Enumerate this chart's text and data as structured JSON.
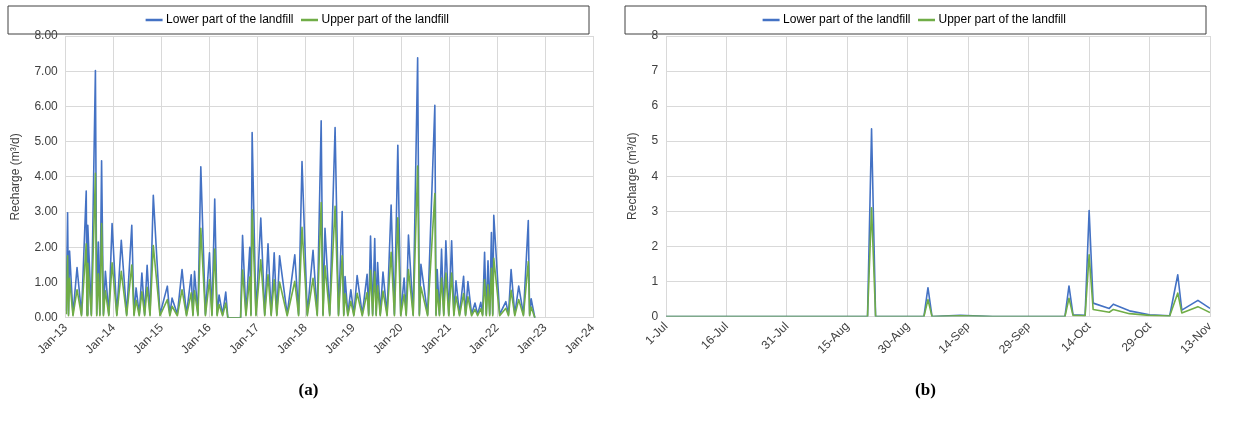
{
  "chart_data": [
    {
      "type": "line",
      "ylabel": "Recharge (m³/d)",
      "legend": "top",
      "grid": true,
      "marker": "none",
      "line_style": "solid",
      "annotations": [
        "(a)"
      ],
      "xlim": [
        "2013-01",
        "2024-01"
      ],
      "xticks": [
        {
          "value": "2013-01",
          "label": "Jan-13"
        },
        {
          "value": "2014-01",
          "label": "Jan-14"
        },
        {
          "value": "2015-01",
          "label": "Jan-15"
        },
        {
          "value": "2016-01",
          "label": "Jan-16"
        },
        {
          "value": "2017-01",
          "label": "Jan-17"
        },
        {
          "value": "2018-01",
          "label": "Jan-18"
        },
        {
          "value": "2019-01",
          "label": "Jan-19"
        },
        {
          "value": "2020-01",
          "label": "Jan-20"
        },
        {
          "value": "2021-01",
          "label": "Jan-21"
        },
        {
          "value": "2022-01",
          "label": "Jan-22"
        },
        {
          "value": "2023-01",
          "label": "Jan-23"
        },
        {
          "value": "2024-01",
          "label": "Jan-24"
        }
      ],
      "ylim": [
        0,
        8
      ],
      "yticks": [
        {
          "value": 0,
          "label": "0.00"
        },
        {
          "value": 1,
          "label": "1.00"
        },
        {
          "value": 2,
          "label": "2.00"
        },
        {
          "value": 3,
          "label": "3.00"
        },
        {
          "value": 4,
          "label": "4.00"
        },
        {
          "value": 5,
          "label": "5.00"
        },
        {
          "value": 6,
          "label": "6.00"
        },
        {
          "value": 7,
          "label": "7.00"
        },
        {
          "value": 8,
          "label": "8.00"
        }
      ],
      "x": [
        "2013-01-05",
        "2013-01-15",
        "2013-01-22",
        "2013-01-30",
        "2013-02-25",
        "2013-03-28",
        "2013-05-01",
        "2013-06-06",
        "2013-06-12",
        "2013-06-18",
        "2013-07-15",
        "2013-08-15",
        "2013-08-25",
        "2013-09-06",
        "2013-09-18",
        "2013-10-01",
        "2013-10-15",
        "2013-10-30",
        "2013-11-25",
        "2013-12-20",
        "2014-01-25",
        "2014-02-28",
        "2014-04-10",
        "2014-05-19",
        "2014-06-05",
        "2014-06-21",
        "2014-07-15",
        "2014-08-04",
        "2014-08-25",
        "2014-09-13",
        "2014-10-05",
        "2014-10-30",
        "2014-12-20",
        "2015-02-14",
        "2015-03-05",
        "2015-03-22",
        "2015-05-01",
        "2015-06-06",
        "2015-07-10",
        "2015-08-15",
        "2015-08-28",
        "2015-09-09",
        "2015-10-05",
        "2015-10-27",
        "2015-12-01",
        "2016-01-01",
        "2016-01-20",
        "2016-02-10",
        "2016-02-28",
        "2016-03-14",
        "2016-04-10",
        "2016-05-04",
        "2016-05-20",
        "2016-08-25",
        "2016-09-09",
        "2016-10-05",
        "2016-11-03",
        "2016-11-12",
        "2016-11-21",
        "2016-12-20",
        "2017-01-26",
        "2017-02-25",
        "2017-03-22",
        "2017-04-15",
        "2017-05-08",
        "2017-05-28",
        "2017-06-18",
        "2017-08-15",
        "2017-10-12",
        "2017-11-10",
        "2017-12-06",
        "2018-01-15",
        "2018-02-28",
        "2018-04-01",
        "2018-05-01",
        "2018-05-15",
        "2018-05-30",
        "2018-07-05",
        "2018-08-15",
        "2018-09-10",
        "2018-10-08",
        "2018-10-20",
        "2018-10-30",
        "2018-11-20",
        "2018-12-13",
        "2019-01-05",
        "2019-01-30",
        "2019-03-10",
        "2019-04-16",
        "2019-04-28",
        "2019-05-12",
        "2019-05-28",
        "2019-06-13",
        "2019-06-24",
        "2019-07-05",
        "2019-07-25",
        "2019-08-15",
        "2019-09-15",
        "2019-10-16",
        "2019-11-10",
        "2019-12-06",
        "2019-12-28",
        "2020-01-23",
        "2020-02-08",
        "2020-02-25",
        "2020-04-01",
        "2020-05-05",
        "2020-05-18",
        "2020-05-30",
        "2020-07-20",
        "2020-09-13",
        "2020-09-22",
        "2020-10-01",
        "2020-10-18",
        "2020-11-03",
        "2020-11-20",
        "2020-12-06",
        "2020-12-28",
        "2021-01-19",
        "2021-02-05",
        "2021-02-21",
        "2021-03-20",
        "2021-04-20",
        "2021-05-05",
        "2021-05-23",
        "2021-06-20",
        "2021-07-16",
        "2021-08-05",
        "2021-08-29",
        "2021-09-12",
        "2021-09-27",
        "2021-10-10",
        "2021-10-23",
        "2021-11-05",
        "2021-11-18",
        "2021-11-28",
        "2021-12-06",
        "2022-01-20",
        "2022-03-08",
        "2022-03-28",
        "2022-04-17",
        "2022-05-15",
        "2022-06-14",
        "2022-07-20",
        "2022-08-26",
        "2022-09-05",
        "2022-09-17",
        "2022-10-15"
      ],
      "series": [
        {
          "name": "Lower part of the landfill",
          "color": "#4472c4",
          "values": [
            0.2,
            2.98,
            0.1,
            1.9,
            0.1,
            1.43,
            0.1,
            3.6,
            0.1,
            2.63,
            0.1,
            7.02,
            0.1,
            2.15,
            0.1,
            4.46,
            0.1,
            1.32,
            0.1,
            2.68,
            0.1,
            2.2,
            0.1,
            2.63,
            0.1,
            0.85,
            0.1,
            1.27,
            0.1,
            1.49,
            0.1,
            3.48,
            0.1,
            0.9,
            0.1,
            0.56,
            0.1,
            1.37,
            0.1,
            1.22,
            0.1,
            1.32,
            0.1,
            4.29,
            0.1,
            1.85,
            0.1,
            3.37,
            0.1,
            0.65,
            0.1,
            0.73,
            0,
            0,
            2.34,
            0.1,
            2.0,
            0.1,
            5.26,
            0.1,
            2.83,
            0.1,
            2.1,
            0.1,
            1.85,
            0.1,
            1.76,
            0.1,
            1.79,
            0.1,
            4.44,
            0.1,
            1.92,
            0.1,
            5.59,
            0.1,
            2.54,
            0.1,
            5.4,
            0.1,
            3.02,
            0.1,
            1.17,
            0.1,
            0.8,
            0.1,
            1.2,
            0.1,
            1.24,
            0.1,
            2.32,
            0.1,
            2.25,
            0.1,
            1.57,
            0.1,
            1.3,
            0.1,
            3.2,
            0.1,
            4.9,
            0.1,
            1.13,
            0.1,
            2.35,
            0.1,
            7.38,
            0.1,
            1.52,
            0.1,
            6.03,
            0.1,
            1.37,
            0.1,
            1.95,
            0.1,
            2.19,
            0.1,
            2.19,
            0.1,
            1.05,
            0.1,
            1.18,
            0.1,
            1.03,
            0.1,
            0.42,
            0.1,
            0.44,
            0.1,
            1.86,
            0.1,
            1.62,
            0.1,
            2.42,
            0.1,
            2.91,
            0.1,
            0.46,
            0.1,
            1.37,
            0.1,
            0.9,
            0.1,
            2.76,
            0.1,
            0.54,
            0
          ]
        },
        {
          "name": "Upper part of the landfill",
          "color": "#70ad47",
          "values": [
            0.1,
            1.76,
            0.06,
            1.12,
            0.06,
            0.8,
            0.06,
            2.1,
            0.06,
            1.55,
            0.06,
            4.1,
            0.06,
            1.25,
            0.06,
            2.68,
            0.06,
            0.77,
            0.06,
            1.56,
            0.06,
            1.32,
            0.06,
            1.5,
            0.06,
            0.5,
            0.06,
            0.74,
            0.06,
            0.87,
            0.06,
            2.05,
            0.06,
            0.52,
            0.06,
            0.33,
            0.06,
            0.8,
            0.06,
            0.71,
            0.06,
            0.77,
            0.06,
            2.54,
            0.06,
            1.08,
            0.06,
            1.95,
            0.06,
            0.38,
            0.06,
            0.42,
            0,
            0,
            1.36,
            0.06,
            1.16,
            0.06,
            3.07,
            0.06,
            1.65,
            0.06,
            1.22,
            0.06,
            1.08,
            0.06,
            1.02,
            0.06,
            1.04,
            0.06,
            2.57,
            0.06,
            1.12,
            0.06,
            3.27,
            0.06,
            1.48,
            0.06,
            3.17,
            0.06,
            1.76,
            0.06,
            0.68,
            0.06,
            0.47,
            0.06,
            0.7,
            0.06,
            0.72,
            0.06,
            1.35,
            0.06,
            1.31,
            0.06,
            0.91,
            0.06,
            0.76,
            0.06,
            1.86,
            0.06,
            2.84,
            0.06,
            0.66,
            0.06,
            1.37,
            0.06,
            4.31,
            0.06,
            0.88,
            0.06,
            3.53,
            0.06,
            0.8,
            0.06,
            1.13,
            0.06,
            1.27,
            0.06,
            1.27,
            0.06,
            0.61,
            0.06,
            0.69,
            0.06,
            0.6,
            0.06,
            0.24,
            0.06,
            0.26,
            0.06,
            1.08,
            0.06,
            0.94,
            0.06,
            1.41,
            0.06,
            1.69,
            0.06,
            0.27,
            0.06,
            0.78,
            0.06,
            0.52,
            0.06,
            1.6,
            0.06,
            0.31,
            0
          ]
        }
      ]
    },
    {
      "type": "line",
      "ylabel": "Recharge (m³/d)",
      "legend": "top",
      "grid": true,
      "marker": "none",
      "line_style": "solid",
      "annotations": [
        "(b)"
      ],
      "xlim": [
        "--07-01",
        "--11-13"
      ],
      "xticks": [
        {
          "value": "--07-01",
          "label": "1-Jul"
        },
        {
          "value": "--07-16",
          "label": "16-Jul"
        },
        {
          "value": "--07-31",
          "label": "31-Jul"
        },
        {
          "value": "--08-15",
          "label": "15-Aug"
        },
        {
          "value": "--08-30",
          "label": "30-Aug"
        },
        {
          "value": "--09-14",
          "label": "14-Sep"
        },
        {
          "value": "--09-29",
          "label": "29-Sep"
        },
        {
          "value": "--10-14",
          "label": "14-Oct"
        },
        {
          "value": "--10-29",
          "label": "29-Oct"
        },
        {
          "value": "--11-13",
          "label": "13-Nov"
        }
      ],
      "ylim": [
        0,
        8
      ],
      "yticks": [
        0,
        1,
        2,
        3,
        4,
        5,
        6,
        7,
        8
      ],
      "x": [
        "--07-01",
        "--08-20",
        "--08-21",
        "--08-22",
        "--09-03",
        "--09-04",
        "--09-05",
        "--09-12",
        "--09-20",
        "--10-08",
        "--10-09",
        "--10-10",
        "--10-13",
        "--10-14",
        "--10-15",
        "--10-19",
        "--10-20",
        "--10-24",
        "--10-29",
        "--11-03",
        "--11-05",
        "--11-06",
        "--11-10",
        "--11-13"
      ],
      "series": [
        {
          "name": "Lower part of the landfill",
          "color": "#4472c4",
          "values": [
            0,
            0,
            5.35,
            0,
            0,
            0.82,
            0,
            0.03,
            0,
            0,
            0.87,
            0.05,
            0.03,
            3.02,
            0.38,
            0.23,
            0.35,
            0.16,
            0.05,
            0.02,
            1.19,
            0.18,
            0.46,
            0.23
          ]
        },
        {
          "name": "Upper part of the landfill",
          "color": "#70ad47",
          "values": [
            0,
            0,
            3.1,
            0,
            0,
            0.48,
            0,
            0.02,
            0,
            0,
            0.52,
            0.03,
            0.02,
            1.76,
            0.2,
            0.12,
            0.2,
            0.08,
            0.03,
            0.01,
            0.67,
            0.1,
            0.28,
            0.11
          ]
        }
      ]
    }
  ]
}
